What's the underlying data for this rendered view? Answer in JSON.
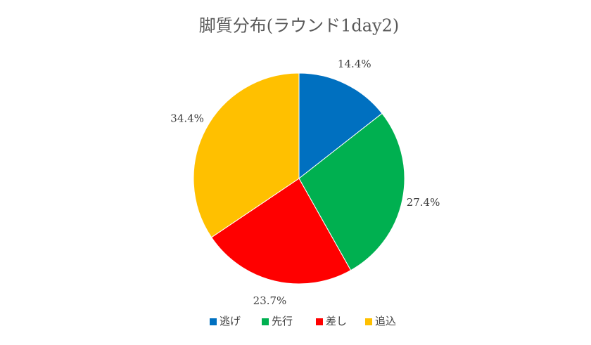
{
  "chart_data": {
    "type": "pie",
    "title": "脚質分布(ラウンド1day2)",
    "categories": [
      "逃げ",
      "先行",
      "差し",
      "追込"
    ],
    "values": [
      14.4,
      27.4,
      23.7,
      34.4
    ],
    "value_labels": [
      "14.4%",
      "27.4%",
      "23.7%",
      "34.4%"
    ],
    "colors": [
      "#0070c0",
      "#00b050",
      "#ff0000",
      "#ffc000"
    ],
    "legend": "bottom"
  }
}
